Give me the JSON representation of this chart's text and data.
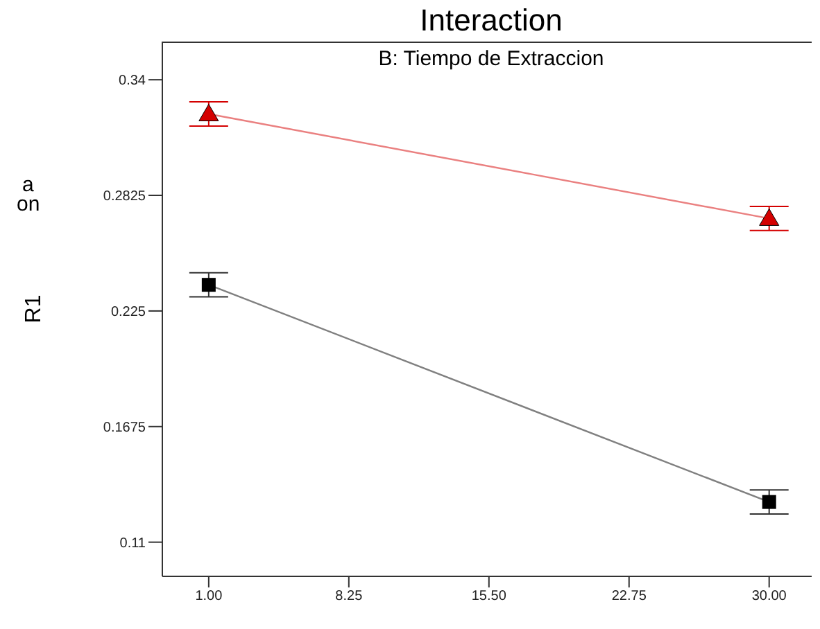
{
  "chart_data": {
    "type": "line",
    "title": "Interaction",
    "subtitle": "B: Tiempo de Extraccion",
    "ylabel": "R1",
    "annotations": [
      "a",
      "on"
    ],
    "x": [
      1,
      30
    ],
    "series": [
      {
        "color": "#d40000",
        "marker": "triangle",
        "values": [
          0.323,
          0.271
        ],
        "errors": [
          0.006,
          0.006
        ]
      },
      {
        "color": "#000000",
        "marker": "square",
        "values": [
          0.238,
          0.13
        ],
        "errors": [
          0.006,
          0.006
        ]
      }
    ],
    "xlim": [
      -1.4,
      32.2
    ],
    "xticks": [
      {
        "value": 1,
        "label": "1.00"
      },
      {
        "value": 8.25,
        "label": "8.25"
      },
      {
        "value": 15.5,
        "label": "15.50"
      },
      {
        "value": 22.75,
        "label": "22.75"
      },
      {
        "value": 30,
        "label": "30.00"
      }
    ],
    "ylim": [
      0.093,
      0.359
    ],
    "yticks": [
      0.11,
      0.1675,
      0.225,
      0.2825,
      0.34
    ],
    "grid": false,
    "legend": false
  }
}
